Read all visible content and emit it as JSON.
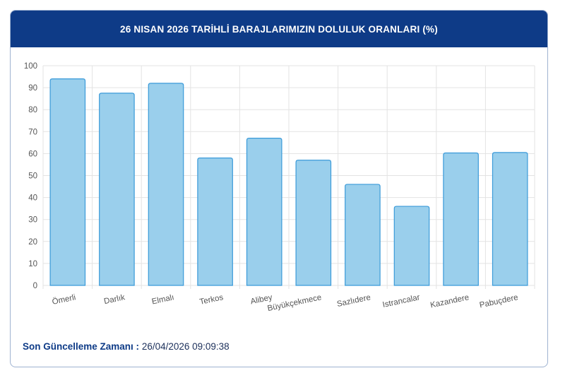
{
  "header": {
    "title": "26 NISAN 2026 TARİHLİ BARAJLARIMIZIN DOLULUK ORANLARI (%)"
  },
  "chart_data": {
    "type": "bar",
    "categories": [
      "Ömerli",
      "Darlık",
      "Elmalı",
      "Terkos",
      "Alibey",
      "Büyükçekmece",
      "Sazlıdere",
      "Istrancalar",
      "Kazandere",
      "Pabuçdere"
    ],
    "values": [
      94,
      87.5,
      92,
      58,
      67,
      57,
      46,
      36,
      60.3,
      60.5
    ],
    "ylim": [
      0,
      100
    ],
    "yticks": [
      0,
      10,
      20,
      30,
      40,
      50,
      60,
      70,
      80,
      90,
      100
    ],
    "grid": true,
    "colors": {
      "bar_fill": "#9acfec",
      "bar_stroke": "#3a9ad9",
      "grid": "#e3e3e3",
      "tick_text": "#555555"
    }
  },
  "footer": {
    "label": "Son Güncelleme Zamanı :",
    "value": "26/04/2026 09:09:38"
  }
}
